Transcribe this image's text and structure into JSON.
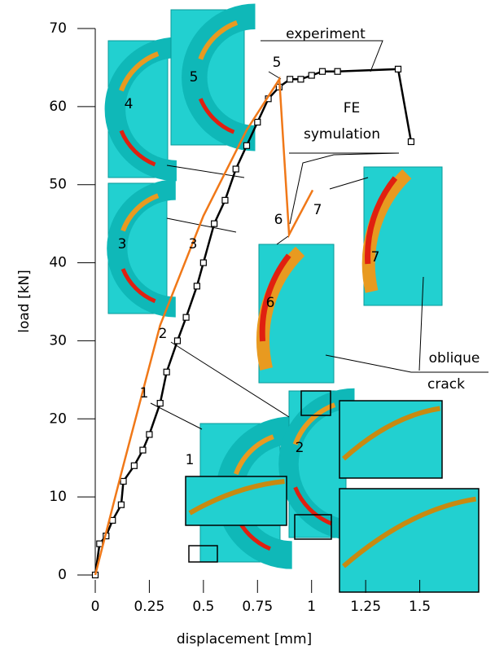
{
  "chart_data": {
    "type": "line",
    "xlabel": "displacement   [mm]",
    "ylabel": "load   [kN]",
    "xlim": [
      0,
      1.75
    ],
    "ylim": [
      0,
      70
    ],
    "xticks": [
      0,
      0.25,
      0.5,
      0.75,
      1,
      1.25,
      1.5
    ],
    "yticks": [
      0,
      10,
      20,
      30,
      40,
      50,
      60,
      70
    ],
    "series": [
      {
        "color": "#000000",
        "markers": true,
        "x": [
          0,
          0.02,
          0.05,
          0.08,
          0.12,
          0.13,
          0.18,
          0.22,
          0.25,
          0.3,
          0.33,
          0.38,
          0.42,
          0.47,
          0.5,
          0.55,
          0.6,
          0.65,
          0.7,
          0.75,
          0.8,
          0.85,
          0.9,
          0.95,
          1.0,
          1.05,
          1.12,
          1.4,
          1.46
        ],
        "values": [
          0,
          4,
          5,
          7,
          9,
          12,
          14,
          16,
          18,
          22,
          26,
          30,
          33,
          37,
          40,
          45,
          48,
          52,
          55,
          58,
          61,
          62.5,
          63.5,
          63.5,
          64,
          64.5,
          64.5,
          64.8,
          55.5
        ]
      },
      {
        "color": "#f07818",
        "markers": false,
        "x": [
          0,
          0.12,
          0.3,
          0.5,
          0.7,
          0.851,
          0.896,
          1.005
        ],
        "values": [
          0,
          13,
          32,
          46,
          57,
          63.5,
          43.6,
          49.3
        ]
      }
    ],
    "annotations": [
      "experiment",
      "FE",
      "symulation",
      "oblique",
      "crack",
      "5",
      "4",
      "5",
      "3",
      "3",
      "2",
      "1",
      "6",
      "7",
      "7",
      "6",
      "1",
      "2"
    ]
  }
}
